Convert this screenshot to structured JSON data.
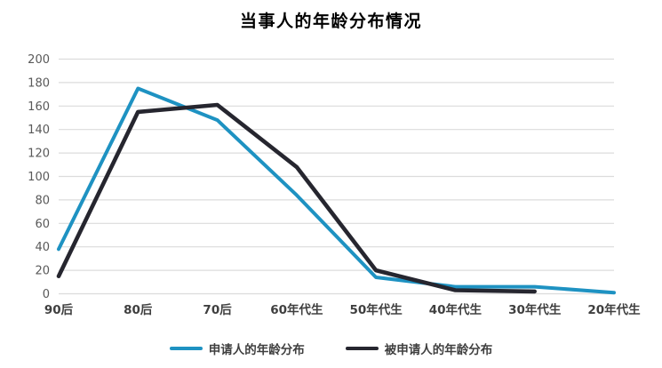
{
  "chart_data": {
    "type": "line",
    "title": "当事人的年龄分布情况",
    "categories": [
      "90后",
      "80后",
      "70后",
      "60年代生",
      "50年代生",
      "40年代生",
      "30年代生",
      "20年代生"
    ],
    "series": [
      {
        "name": "申请人的年龄分布",
        "color": "#1E92C2",
        "values": [
          38,
          175,
          148,
          84,
          14,
          6,
          6,
          1
        ]
      },
      {
        "name": "被申请人的年龄分布",
        "color": "#26262F",
        "values": [
          15,
          155,
          161,
          108,
          20,
          3,
          2,
          null
        ]
      }
    ],
    "ylim": [
      0,
      200
    ],
    "yticks": [
      0,
      20,
      40,
      60,
      80,
      100,
      120,
      140,
      160,
      180,
      200
    ],
    "grid": true,
    "legend_position": "bottom",
    "colors": {
      "gridline": "#DCDCDC",
      "y_tick_label": "#595959",
      "x_tick_label": "#3F3F3F",
      "title": "#4D4D4D"
    }
  }
}
